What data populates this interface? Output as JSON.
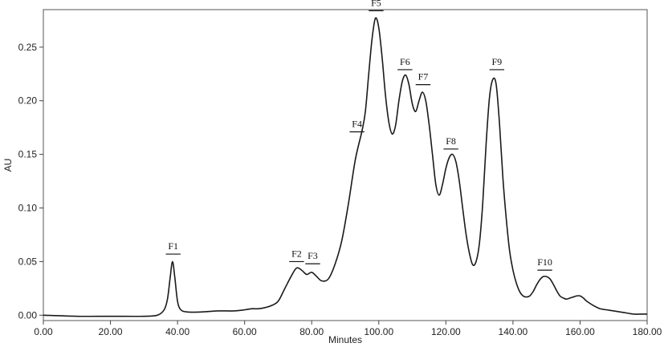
{
  "chart_data": {
    "type": "line",
    "title": "",
    "xlabel": "Minutes",
    "ylabel": "AU",
    "xlim": [
      0,
      180
    ],
    "ylim": [
      -0.005,
      0.285
    ],
    "grid": false,
    "legend": "none",
    "line_color": "#1a1a1a",
    "x_ticks": [
      {
        "value": 0,
        "label": "0.00"
      },
      {
        "value": 20,
        "label": "20.00"
      },
      {
        "value": 40,
        "label": "40.00"
      },
      {
        "value": 60,
        "label": "60.00"
      },
      {
        "value": 80,
        "label": "80.00"
      },
      {
        "value": 100,
        "label": "100.00"
      },
      {
        "value": 120,
        "label": "120.00"
      },
      {
        "value": 140,
        "label": "140.00"
      },
      {
        "value": 160,
        "label": "160.00"
      },
      {
        "value": 180,
        "label": "180.00"
      }
    ],
    "y_ticks": [
      {
        "value": 0.0,
        "label": "0.00"
      },
      {
        "value": 0.05,
        "label": "0.05"
      },
      {
        "value": 0.1,
        "label": "0.10"
      },
      {
        "value": 0.15,
        "label": "0.15"
      },
      {
        "value": 0.2,
        "label": "0.20"
      },
      {
        "value": 0.25,
        "label": "0.25"
      }
    ],
    "series": [
      {
        "x": [
          0,
          10,
          20,
          30,
          34,
          36,
          37,
          37.8,
          38.5,
          39.2,
          40,
          41,
          43,
          47,
          52,
          57,
          60,
          62,
          64,
          66,
          68,
          70,
          72,
          74,
          75.5,
          77,
          78.5,
          80,
          81.5,
          83,
          85,
          87,
          89,
          91,
          93,
          95,
          96,
          97,
          98,
          99,
          100,
          101,
          102,
          103,
          104,
          105,
          106,
          107,
          108,
          109,
          110,
          111,
          112,
          113,
          114,
          115,
          116,
          117,
          118,
          119,
          120,
          121,
          122,
          123,
          124,
          125,
          126,
          127,
          128,
          129,
          130,
          131,
          132,
          133,
          134,
          135,
          136,
          137,
          138,
          139,
          140,
          141,
          142,
          143,
          144,
          145,
          146,
          147,
          148,
          149,
          150,
          151,
          152,
          153,
          154,
          155,
          156,
          157,
          158,
          159,
          160,
          161,
          162,
          164,
          166,
          168,
          170,
          172,
          174,
          176,
          178,
          180
        ],
        "y": [
          0.0,
          -0.001,
          -0.001,
          -0.001,
          0.0,
          0.005,
          0.015,
          0.035,
          0.05,
          0.035,
          0.013,
          0.005,
          0.003,
          0.003,
          0.004,
          0.004,
          0.005,
          0.006,
          0.006,
          0.007,
          0.009,
          0.013,
          0.025,
          0.037,
          0.044,
          0.042,
          0.038,
          0.04,
          0.036,
          0.032,
          0.034,
          0.048,
          0.07,
          0.105,
          0.145,
          0.172,
          0.19,
          0.225,
          0.258,
          0.277,
          0.268,
          0.24,
          0.205,
          0.18,
          0.169,
          0.177,
          0.2,
          0.218,
          0.224,
          0.215,
          0.197,
          0.19,
          0.2,
          0.208,
          0.2,
          0.178,
          0.15,
          0.122,
          0.112,
          0.122,
          0.137,
          0.147,
          0.15,
          0.143,
          0.125,
          0.1,
          0.076,
          0.058,
          0.047,
          0.05,
          0.067,
          0.105,
          0.16,
          0.203,
          0.22,
          0.215,
          0.178,
          0.128,
          0.09,
          0.06,
          0.042,
          0.03,
          0.022,
          0.018,
          0.017,
          0.018,
          0.022,
          0.028,
          0.033,
          0.036,
          0.036,
          0.034,
          0.029,
          0.023,
          0.018,
          0.016,
          0.015,
          0.016,
          0.017,
          0.018,
          0.018,
          0.016,
          0.013,
          0.009,
          0.006,
          0.005,
          0.004,
          0.003,
          0.002,
          0.001,
          0.001,
          0.001
        ]
      }
    ],
    "peaks": [
      {
        "label": "F1",
        "x": 38.7,
        "bar_y": 0.057,
        "half_width": 2.2
      },
      {
        "label": "F2",
        "x": 75.5,
        "bar_y": 0.05,
        "half_width": 2.2
      },
      {
        "label": "F3",
        "x": 80.3,
        "bar_y": 0.048,
        "half_width": 2.2
      },
      {
        "label": "F4",
        "x": 93.5,
        "bar_y": 0.171,
        "half_width": 2.2
      },
      {
        "label": "F5",
        "x": 99.2,
        "bar_y": 0.284,
        "half_width": 2.2
      },
      {
        "label": "F6",
        "x": 107.8,
        "bar_y": 0.229,
        "half_width": 2.2
      },
      {
        "label": "F7",
        "x": 113.2,
        "bar_y": 0.215,
        "half_width": 2.2
      },
      {
        "label": "F8",
        "x": 121.5,
        "bar_y": 0.155,
        "half_width": 2.2
      },
      {
        "label": "F9",
        "x": 135.2,
        "bar_y": 0.229,
        "half_width": 2.2
      },
      {
        "label": "F10",
        "x": 149.5,
        "bar_y": 0.042,
        "half_width": 2.2
      }
    ]
  }
}
